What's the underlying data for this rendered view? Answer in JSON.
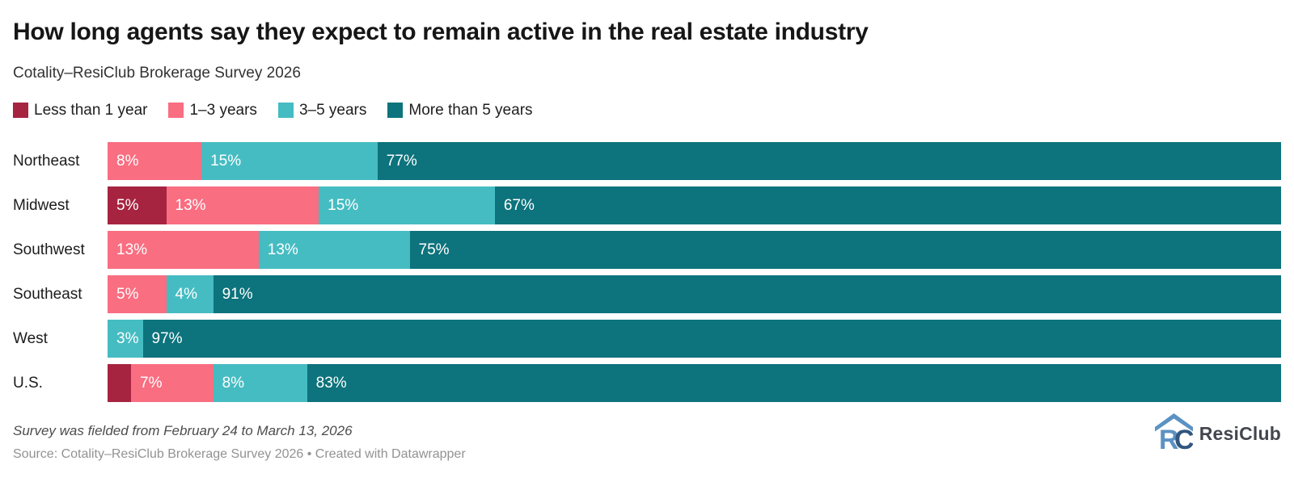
{
  "header": {
    "title": "How long agents say they expect to remain active in the real estate industry",
    "subtitle": "Cotality–ResiClub Brokerage Survey 2026"
  },
  "chart_data": {
    "type": "bar",
    "orientation": "horizontal",
    "stacked": true,
    "unit": "%",
    "xlim": [
      0,
      100
    ],
    "grid": false,
    "legend_position": "top",
    "value_label_format": "{value}%",
    "value_label_min_pct": 3,
    "categories": [
      "Northeast",
      "Midwest",
      "Southwest",
      "Southeast",
      "West",
      "U.S."
    ],
    "series": [
      {
        "name": "Less than 1 year",
        "color": "#a72440",
        "values": [
          0,
          5,
          0,
          0,
          0,
          2
        ]
      },
      {
        "name": "1–3 years",
        "color": "#f96e81",
        "values": [
          8,
          13,
          13,
          5,
          0,
          7
        ]
      },
      {
        "name": "3–5 years",
        "color": "#45bcc2",
        "values": [
          15,
          15,
          13,
          4,
          3,
          8
        ]
      },
      {
        "name": "More than 5 years",
        "color": "#0d737c",
        "values": [
          77,
          67,
          75,
          91,
          97,
          83
        ]
      }
    ]
  },
  "footer": {
    "footnote": "Survey was fielded from February 24 to March 13, 2026",
    "source": "Source: Cotality–ResiClub Brokerage Survey 2026 • Created with Datawrapper"
  },
  "branding": {
    "logo_text": "ResiClub",
    "logo_icon": "resiclub-house-icon",
    "logo_blue": "#5b92c4",
    "logo_dark": "#31567e"
  }
}
